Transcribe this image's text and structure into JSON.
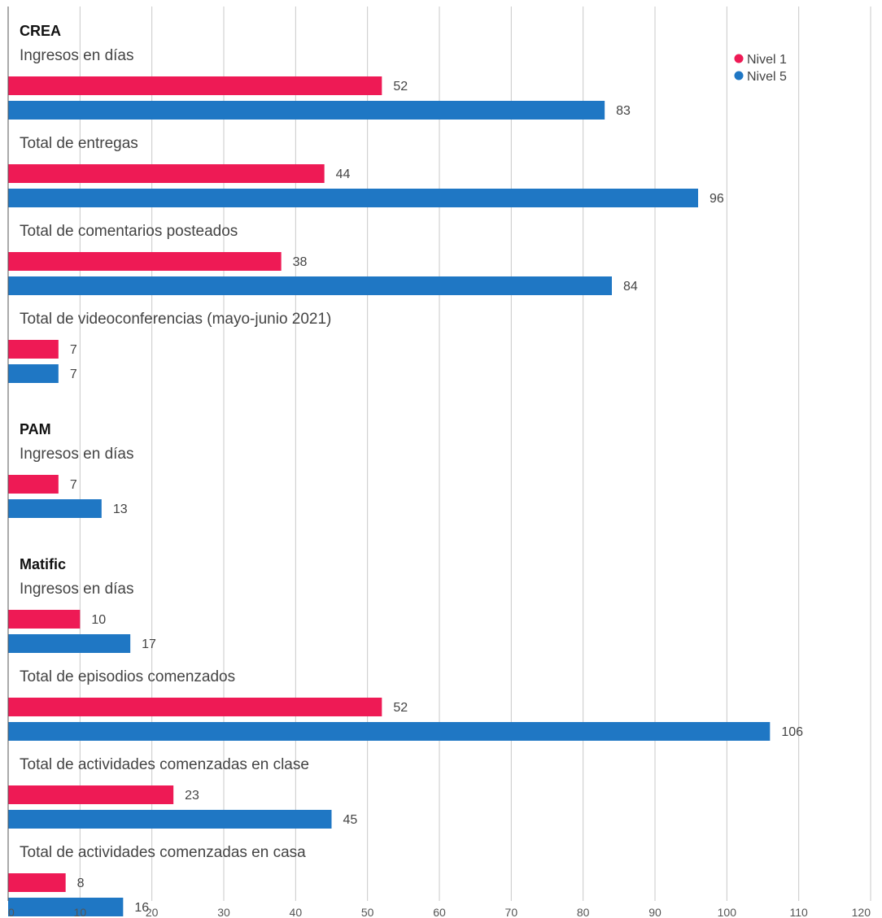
{
  "chart_data": {
    "type": "bar",
    "orientation": "horizontal",
    "xlim": [
      0,
      120
    ],
    "x_ticks": [
      0,
      10,
      20,
      30,
      40,
      50,
      60,
      70,
      80,
      90,
      100,
      110,
      120
    ],
    "grid": true,
    "legend_position": "top-right",
    "series": [
      {
        "name": "Nivel 1",
        "color": "#ee1a55"
      },
      {
        "name": "Nivel 5",
        "color": "#1f77c4"
      }
    ],
    "groups": [
      {
        "title": "CREA",
        "metrics": [
          {
            "label": "Ingresos en días",
            "values": [
              52,
              83
            ]
          },
          {
            "label": "Total de entregas",
            "values": [
              44,
              96
            ]
          },
          {
            "label": "Total de comentarios posteados",
            "values": [
              38,
              84
            ]
          },
          {
            "label": "Total de videoconferencias (mayo-junio 2021)",
            "values": [
              7,
              7
            ]
          }
        ]
      },
      {
        "title": "PAM",
        "metrics": [
          {
            "label": "Ingresos en días",
            "values": [
              7,
              13
            ]
          }
        ]
      },
      {
        "title": "Matific",
        "metrics": [
          {
            "label": "Ingresos en días",
            "values": [
              10,
              17
            ]
          },
          {
            "label": "Total de episodios comenzados",
            "values": [
              52,
              106
            ]
          },
          {
            "label": "Total de actividades comenzadas en clase",
            "values": [
              23,
              45
            ]
          },
          {
            "label": "Total de actividades comenzadas en casa",
            "values": [
              8,
              16
            ]
          }
        ]
      }
    ]
  }
}
